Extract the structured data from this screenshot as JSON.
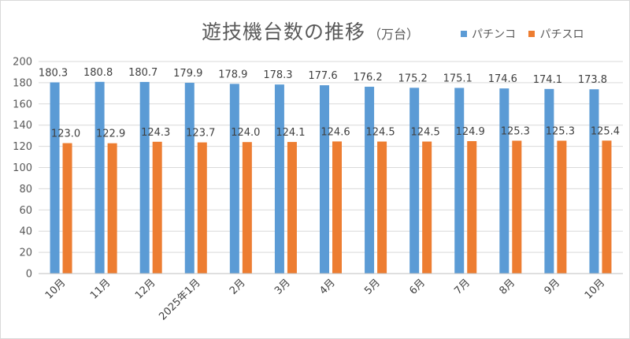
{
  "chart_data": {
    "type": "bar",
    "title": "遊技機台数の推移",
    "subtitle": "（万台）",
    "categories": [
      "10月",
      "11月",
      "12月",
      "2025年1月",
      "2月",
      "3月",
      "4月",
      "5月",
      "6月",
      "7月",
      "8月",
      "9月",
      "10月"
    ],
    "series": [
      {
        "name": "パチンコ",
        "color": "#5b9bd5",
        "values": [
          180.3,
          180.8,
          180.7,
          179.9,
          178.9,
          178.3,
          177.6,
          176.2,
          175.2,
          175.1,
          174.6,
          174.1,
          173.8
        ],
        "labels": [
          "180.3",
          "180.8",
          "180.7",
          "179.9",
          "178.9",
          "178.3",
          "177.6",
          "176.2",
          "175.2",
          "175.1",
          "174.6",
          "174.1",
          "173.8"
        ]
      },
      {
        "name": "パチスロ",
        "color": "#ed7d31",
        "values": [
          123.0,
          122.9,
          124.3,
          123.7,
          124.0,
          124.1,
          124.6,
          124.5,
          124.5,
          124.9,
          125.3,
          125.3,
          125.4
        ],
        "labels": [
          "123.0",
          "122.9",
          "124.3",
          "123.7",
          "124.0",
          "124.1",
          "124.6",
          "124.5",
          "124.5",
          "124.9",
          "125.3",
          "125.3",
          "125.4"
        ]
      }
    ],
    "ylim": [
      0,
      200
    ],
    "yticks": [
      "0",
      "20",
      "40",
      "60",
      "80",
      "100",
      "120",
      "140",
      "160",
      "180",
      "200"
    ],
    "grid": true,
    "legend_position": "top-right"
  }
}
